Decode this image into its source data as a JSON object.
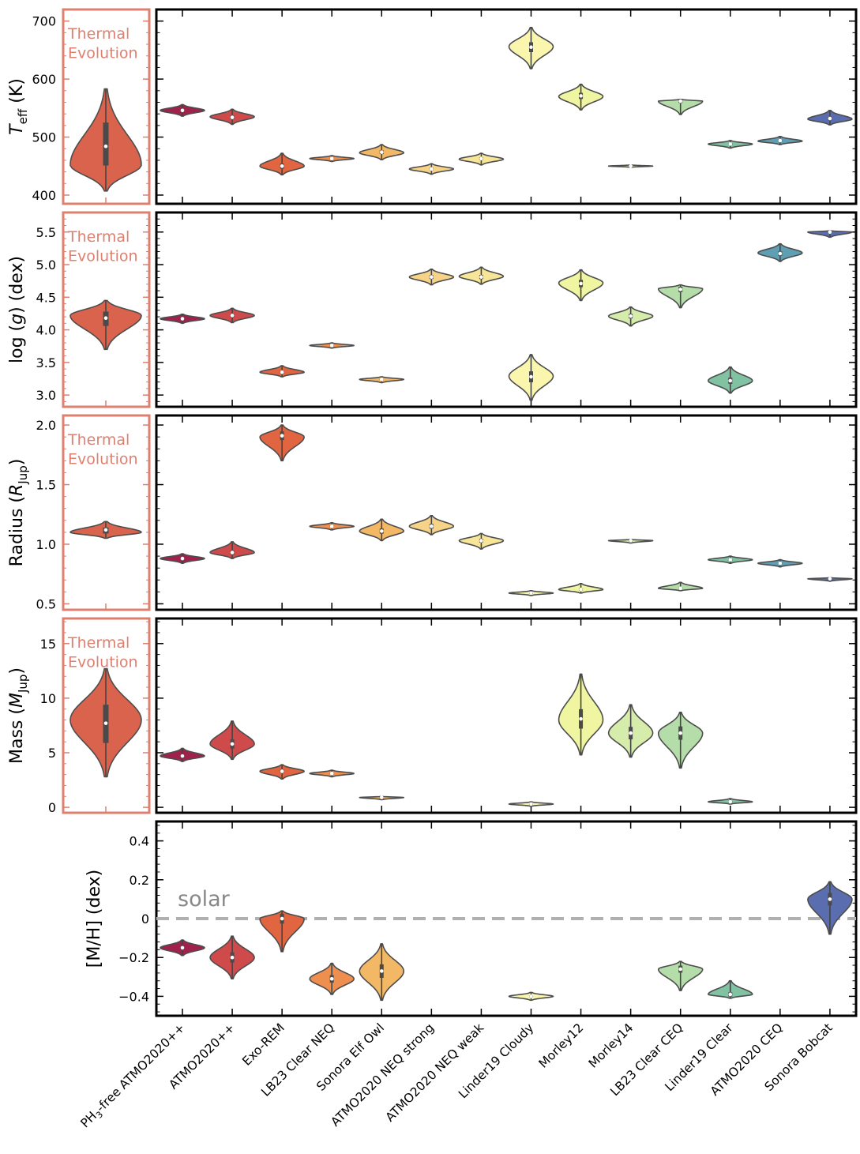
{
  "colors": {
    "thermal_evolution": "#dd8070",
    "thermal_violin": "#d9634c",
    "solar_line": "#b0b0b0",
    "solar_text": "#888888"
  },
  "chart_data": {
    "type": "violin",
    "models": [
      "PH3-free ATMO2020++",
      "ATMO2020++",
      "Exo-REM",
      "LB23 Clear NEQ",
      "Sonora Elf Owl",
      "ATMO2020 NEQ strong",
      "ATMO2020 NEQ weak",
      "Linder19 Cloudy",
      "Morley12",
      "Morley14",
      "LB23 Clear CEQ",
      "Linder19 Clear",
      "ATMO2020 CEQ",
      "Sonora Bobcat"
    ],
    "model_tick_labels": [
      {
        "main": "PH",
        "sub": "3",
        "tail": "-free ATMO2020++"
      },
      {
        "main": "ATMO2020++"
      },
      {
        "main": "Exo-REM"
      },
      {
        "main": "LB23 Clear NEQ"
      },
      {
        "main": "Sonora Elf Owl"
      },
      {
        "main": "ATMO2020 NEQ strong"
      },
      {
        "main": "ATMO2020 NEQ weak"
      },
      {
        "main": "Linder19 Cloudy"
      },
      {
        "main": "Morley12"
      },
      {
        "main": "Morley14"
      },
      {
        "main": "LB23 Clear CEQ"
      },
      {
        "main": "Linder19 Clear"
      },
      {
        "main": "ATMO2020 CEQ"
      },
      {
        "main": "Sonora Bobcat"
      }
    ],
    "model_colors": [
      "#a2214b",
      "#cf4b4b",
      "#e06540",
      "#ef8f4f",
      "#f3b866",
      "#f6d387",
      "#f7e598",
      "#fbf6ad",
      "#eff5a0",
      "#d5ecaa",
      "#b5ddaa",
      "#80c2a2",
      "#5f9fb3",
      "#5a6eaf"
    ],
    "thermal_evolution_label": [
      "Thermal",
      "Evolution"
    ],
    "panels": [
      {
        "key": "teff",
        "ylabel": {
          "main": "T",
          "sub": "eff",
          "tail": " (K)",
          "italic_main": true
        },
        "ylim": [
          385,
          720
        ],
        "yticks": [
          400,
          500,
          600,
          700
        ],
        "yticklabels": [
          "400",
          "500",
          "600",
          "700"
        ],
        "thermal": {
          "center": 484,
          "lo": 407,
          "hi": 583,
          "peak": 452,
          "q1": 451,
          "q3": 525
        },
        "violins": [
          {
            "center": 546,
            "lo": 536,
            "hi": 556,
            "peak": 546
          },
          {
            "center": 534,
            "lo": 522,
            "hi": 548,
            "peak": 535
          },
          {
            "center": 450,
            "lo": 435,
            "hi": 472,
            "peak": 450
          },
          {
            "center": 463,
            "lo": 458,
            "hi": 468,
            "peak": 463
          },
          {
            "center": 474,
            "lo": 461,
            "hi": 487,
            "peak": 473
          },
          {
            "center": 445,
            "lo": 436,
            "hi": 454,
            "peak": 445
          },
          {
            "center": 463,
            "lo": 452,
            "hi": 472,
            "peak": 462
          },
          {
            "center": 655,
            "lo": 618,
            "hi": 689,
            "peak": 656
          },
          {
            "center": 571,
            "lo": 547,
            "hi": 591,
            "peak": 570
          },
          {
            "center": 450,
            "lo": 448,
            "hi": 452,
            "peak": 450
          },
          {
            "center": 562,
            "lo": 539,
            "hi": 565,
            "peak": 562
          },
          {
            "center": 488,
            "lo": 481,
            "hi": 494,
            "peak": 488
          },
          {
            "center": 494,
            "lo": 487,
            "hi": 501,
            "peak": 493
          },
          {
            "center": 532,
            "lo": 521,
            "hi": 546,
            "peak": 531
          }
        ]
      },
      {
        "key": "logg",
        "ylabel": {
          "main": "log (",
          "italic": "g",
          "tail": ") (dex)"
        },
        "ylim": [
          2.82,
          5.8
        ],
        "yticks": [
          3.0,
          3.5,
          4.0,
          4.5,
          5.0,
          5.5
        ],
        "yticklabels": [
          "3.0",
          "3.5",
          "4.0",
          "4.5",
          "5.0",
          "5.5"
        ],
        "thermal": {
          "center": 4.18,
          "lo": 3.7,
          "hi": 4.45,
          "peak": 4.22,
          "q1": 4.06,
          "q3": 4.28
        },
        "violins": [
          {
            "center": 4.17,
            "lo": 4.1,
            "hi": 4.24,
            "peak": 4.17
          },
          {
            "center": 4.22,
            "lo": 4.11,
            "hi": 4.33,
            "peak": 4.22
          },
          {
            "center": 3.35,
            "lo": 3.28,
            "hi": 3.45,
            "peak": 3.35
          },
          {
            "center": 3.76,
            "lo": 3.72,
            "hi": 3.8,
            "peak": 3.76
          },
          {
            "center": 3.24,
            "lo": 3.19,
            "hi": 3.28,
            "peak": 3.24
          },
          {
            "center": 4.81,
            "lo": 4.69,
            "hi": 4.93,
            "peak": 4.81
          },
          {
            "center": 4.81,
            "lo": 4.7,
            "hi": 4.96,
            "peak": 4.82
          },
          {
            "center": 3.28,
            "lo": 2.92,
            "hi": 3.62,
            "peak": 3.29
          },
          {
            "center": 4.71,
            "lo": 4.45,
            "hi": 4.92,
            "peak": 4.72
          },
          {
            "center": 4.21,
            "lo": 4.06,
            "hi": 4.35,
            "peak": 4.21
          },
          {
            "center": 4.62,
            "lo": 4.34,
            "hi": 4.69,
            "peak": 4.63
          },
          {
            "center": 3.22,
            "lo": 3.03,
            "hi": 3.43,
            "peak": 3.22
          },
          {
            "center": 5.17,
            "lo": 5.05,
            "hi": 5.32,
            "peak": 5.18
          },
          {
            "center": 5.5,
            "lo": 5.42,
            "hi": 5.52,
            "peak": 5.5
          }
        ]
      },
      {
        "key": "radius",
        "ylabel": {
          "main": "Radius (",
          "italic": "R",
          "sub": "Jup",
          "tail": ")"
        },
        "ylim": [
          0.45,
          2.08
        ],
        "yticks": [
          0.5,
          1.0,
          1.5,
          2.0
        ],
        "yticklabels": [
          "0.5",
          "1.0",
          "1.5",
          "2.0"
        ],
        "thermal": {
          "center": 1.12,
          "lo": 1.05,
          "hi": 1.19,
          "peak": 1.1,
          "q1": 1.09,
          "q3": 1.14
        },
        "violins": [
          {
            "center": 0.88,
            "lo": 0.84,
            "hi": 0.92,
            "peak": 0.88
          },
          {
            "center": 0.93,
            "lo": 0.88,
            "hi": 1.02,
            "peak": 0.93
          },
          {
            "center": 1.91,
            "lo": 1.7,
            "hi": 2.0,
            "peak": 1.9
          },
          {
            "center": 1.15,
            "lo": 1.12,
            "hi": 1.18,
            "peak": 1.15
          },
          {
            "center": 1.11,
            "lo": 1.03,
            "hi": 1.21,
            "peak": 1.11
          },
          {
            "center": 1.15,
            "lo": 1.08,
            "hi": 1.24,
            "peak": 1.15
          },
          {
            "center": 1.03,
            "lo": 0.96,
            "hi": 1.09,
            "peak": 1.03
          },
          {
            "center": 0.59,
            "lo": 0.57,
            "hi": 0.61,
            "peak": 0.59
          },
          {
            "center": 0.62,
            "lo": 0.59,
            "hi": 0.67,
            "peak": 0.62
          },
          {
            "center": 1.03,
            "lo": 1.01,
            "hi": 1.04,
            "peak": 1.03
          },
          {
            "center": 0.63,
            "lo": 0.61,
            "hi": 0.68,
            "peak": 0.63
          },
          {
            "center": 0.87,
            "lo": 0.84,
            "hi": 0.9,
            "peak": 0.87
          },
          {
            "center": 0.84,
            "lo": 0.81,
            "hi": 0.87,
            "peak": 0.84
          },
          {
            "center": 0.71,
            "lo": 0.69,
            "hi": 0.72,
            "peak": 0.71
          }
        ]
      },
      {
        "key": "mass",
        "ylabel": {
          "main": "Mass (",
          "italic": "M",
          "sub": "Jup",
          "tail": ")"
        },
        "ylim": [
          -0.5,
          17.3
        ],
        "yticks": [
          0,
          5,
          10,
          15
        ],
        "yticklabels": [
          "0",
          "5",
          "10",
          "15"
        ],
        "thermal": {
          "center": 7.7,
          "lo": 2.8,
          "hi": 12.7,
          "peak": 8.0,
          "q1": 5.9,
          "q3": 9.4
        },
        "violins": [
          {
            "center": 4.7,
            "lo": 4.2,
            "hi": 5.4,
            "peak": 4.7
          },
          {
            "center": 5.8,
            "lo": 4.4,
            "hi": 7.9,
            "peak": 5.8
          },
          {
            "center": 3.3,
            "lo": 2.6,
            "hi": 3.9,
            "peak": 3.3
          },
          {
            "center": 3.1,
            "lo": 2.8,
            "hi": 3.4,
            "peak": 3.1
          },
          {
            "center": 0.9,
            "lo": 0.7,
            "hi": 1.0,
            "peak": 0.9
          },
          null,
          null,
          {
            "center": 0.3,
            "lo": 0.1,
            "hi": 0.5,
            "peak": 0.3
          },
          {
            "center": 8.1,
            "lo": 4.8,
            "hi": 12.2,
            "peak": 8.0
          },
          {
            "center": 6.8,
            "lo": 4.6,
            "hi": 9.4,
            "peak": 6.8
          },
          {
            "center": 6.8,
            "lo": 3.6,
            "hi": 8.7,
            "peak": 6.8
          },
          {
            "center": 0.5,
            "lo": 0.3,
            "hi": 0.8,
            "peak": 0.5
          },
          null,
          null
        ]
      },
      {
        "key": "metallicity",
        "ylabel": {
          "main": "[M/H] (dex)"
        },
        "ylim": [
          -0.5,
          0.5
        ],
        "yticks": [
          -0.4,
          -0.2,
          0,
          0.2,
          0.4
        ],
        "yticklabels": [
          "−0.4",
          "−0.2",
          "0",
          "0.2",
          "0.4"
        ],
        "solar_label": "solar",
        "solar_value": 0,
        "violins": [
          {
            "center": -0.15,
            "lo": -0.19,
            "hi": -0.11,
            "peak": -0.15
          },
          {
            "center": -0.2,
            "lo": -0.31,
            "hi": -0.09,
            "peak": -0.2
          },
          {
            "center": 0.0,
            "lo": -0.17,
            "hi": 0.04,
            "peak": 0.0
          },
          {
            "center": -0.31,
            "lo": -0.39,
            "hi": -0.23,
            "peak": -0.31
          },
          {
            "center": -0.27,
            "lo": -0.42,
            "hi": -0.13,
            "peak": -0.27
          },
          null,
          null,
          {
            "center": -0.4,
            "lo": -0.42,
            "hi": -0.38,
            "peak": -0.4
          },
          null,
          null,
          {
            "center": -0.26,
            "lo": -0.37,
            "hi": -0.22,
            "peak": -0.26
          },
          {
            "center": -0.39,
            "lo": -0.41,
            "hi": -0.32,
            "peak": -0.39
          },
          null,
          {
            "center": 0.1,
            "lo": -0.08,
            "hi": 0.19,
            "peak": 0.1
          }
        ]
      }
    ]
  }
}
